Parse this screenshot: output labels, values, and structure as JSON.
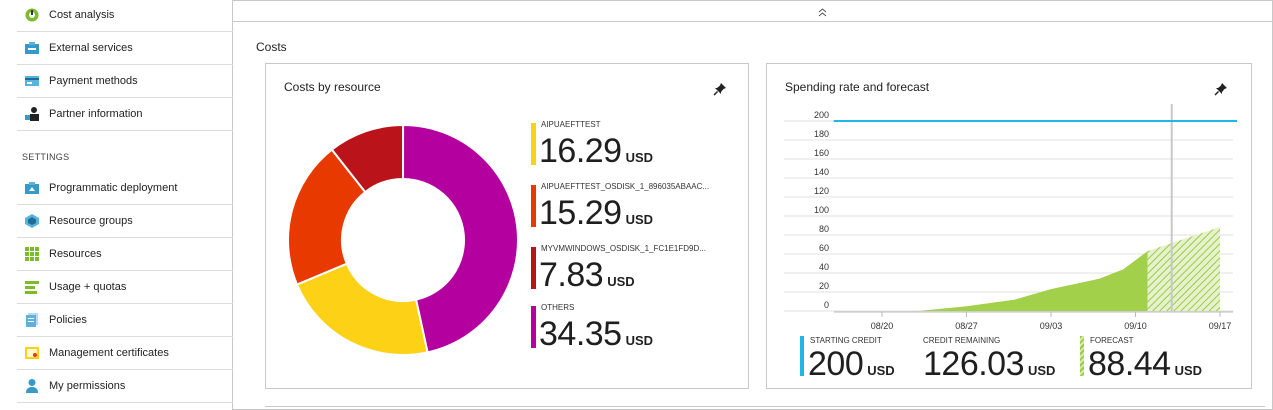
{
  "sidebar": {
    "items_top": [
      {
        "label": "Cost analysis",
        "icon": "cost-analysis-icon"
      },
      {
        "label": "External services",
        "icon": "external-services-icon"
      },
      {
        "label": "Payment methods",
        "icon": "payment-methods-icon"
      },
      {
        "label": "Partner information",
        "icon": "partner-information-icon"
      }
    ],
    "section_heading": "SETTINGS",
    "items_settings": [
      {
        "label": "Programmatic deployment",
        "icon": "programmatic-deployment-icon"
      },
      {
        "label": "Resource groups",
        "icon": "resource-groups-icon"
      },
      {
        "label": "Resources",
        "icon": "resources-icon"
      },
      {
        "label": "Usage + quotas",
        "icon": "usage-quotas-icon"
      },
      {
        "label": "Policies",
        "icon": "policies-icon"
      },
      {
        "label": "Management certificates",
        "icon": "management-certificates-icon"
      },
      {
        "label": "My permissions",
        "icon": "my-permissions-icon"
      }
    ]
  },
  "main": {
    "collapse_icon": "double-chevron-up-icon",
    "section_title": "Costs",
    "pin_icon": "pin-icon",
    "costs_card": {
      "title": "Costs by resource",
      "unit": "USD",
      "colors": [
        "#fcd116",
        "#e83a00",
        "#ba141a",
        "#b4009e"
      ]
    },
    "spending_card": {
      "title": "Spending rate and forecast",
      "stats": [
        {
          "label": "STARTING CREDIT",
          "value": "200",
          "unit": "USD",
          "color": "#1fb6e8"
        },
        {
          "label": "CREDIT REMAINING",
          "value": "126.03",
          "unit": "USD"
        },
        {
          "label": "FORECAST",
          "value": "88.44",
          "unit": "USD",
          "color": "#9ccc3c"
        }
      ]
    }
  },
  "chart_data": [
    {
      "type": "pie",
      "title": "Costs by resource",
      "categories": [
        "AIPUAEFTTEST",
        "AIPUAEFTTEST_OSDISK_1_896035ABAAC...",
        "MYVMWINDOWS_OSDISK_1_FC1E1FD9D...",
        "OTHERS"
      ],
      "values": [
        16.29,
        15.29,
        7.83,
        34.35
      ],
      "value_labels": [
        "16.29",
        "15.29",
        "7.83",
        "34.35"
      ],
      "unit": "USD",
      "legend": "right"
    },
    {
      "type": "area",
      "title": "Spending rate and forecast",
      "x_ticks": [
        "08/20",
        "08/27",
        "09/03",
        "09/10",
        "09/17"
      ],
      "y_ticks": [
        0,
        20,
        40,
        60,
        80,
        100,
        120,
        140,
        160,
        180,
        200
      ],
      "ylim": [
        0,
        200
      ],
      "grid": true,
      "series": [
        {
          "name": "STARTING CREDIT",
          "type": "line",
          "color": "#1fb6e8",
          "x": [
            "08/16",
            "09/18"
          ],
          "y": [
            200,
            200
          ]
        },
        {
          "name": "",
          "type": "area",
          "color": "#9ccc3c",
          "x": [
            "08/23",
            "08/27",
            "08/31",
            "09/03",
            "09/07",
            "09/09",
            "09/11"
          ],
          "y": [
            0,
            5,
            12,
            23,
            34,
            44,
            63
          ]
        },
        {
          "name": "FORECAST",
          "type": "area-hatched",
          "color": "#9ccc3c",
          "x": [
            "09/11",
            "09/17"
          ],
          "y": [
            63,
            88.44
          ]
        }
      ]
    }
  ]
}
